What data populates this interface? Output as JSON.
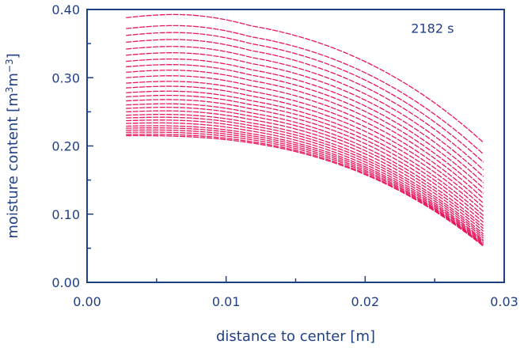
{
  "chart_data": {
    "type": "line",
    "title": "",
    "xlabel": "distance to center [m]",
    "ylabel_parts": {
      "base": "moisture content [m",
      "sup1": "3",
      "mid": "m",
      "sup2": "−3",
      "end": "]"
    },
    "xlim": [
      0.0,
      0.03
    ],
    "ylim": [
      0.0,
      0.4
    ],
    "x_ticks": [
      {
        "value": 0.0,
        "label": "0.00"
      },
      {
        "value": 0.01,
        "label": "0.01"
      },
      {
        "value": 0.02,
        "label": "0.02"
      },
      {
        "value": 0.03,
        "label": "0.03"
      }
    ],
    "y_ticks": [
      {
        "value": 0.0,
        "label": "0.00"
      },
      {
        "value": 0.1,
        "label": "0.10"
      },
      {
        "value": 0.2,
        "label": "0.20"
      },
      {
        "value": 0.3,
        "label": "0.30"
      },
      {
        "value": 0.4,
        "label": "0.40"
      }
    ],
    "annotation": {
      "text": "2182 s",
      "x": 0.0233,
      "y": 0.366
    },
    "grid": false,
    "line_color": "#e8175d",
    "axis_color": "#1f3f86",
    "x_range": [
      0.0028,
      0.0285
    ],
    "profile_start": [
      0.388,
      0.372,
      0.362,
      0.352,
      0.342,
      0.333,
      0.324,
      0.316,
      0.308,
      0.3,
      0.292,
      0.285,
      0.278,
      0.272,
      0.266,
      0.26,
      0.255,
      0.25,
      0.245,
      0.241,
      0.237,
      0.233,
      0.229,
      0.226,
      0.223,
      0.22,
      0.217,
      0.215
    ],
    "profile_end": [
      0.205,
      0.188,
      0.176,
      0.165,
      0.155,
      0.146,
      0.138,
      0.13,
      0.123,
      0.116,
      0.11,
      0.104,
      0.098,
      0.093,
      0.088,
      0.083,
      0.079,
      0.075,
      0.071,
      0.068,
      0.065,
      0.062,
      0.06,
      0.058,
      0.056,
      0.055,
      0.054,
      0.053
    ]
  }
}
